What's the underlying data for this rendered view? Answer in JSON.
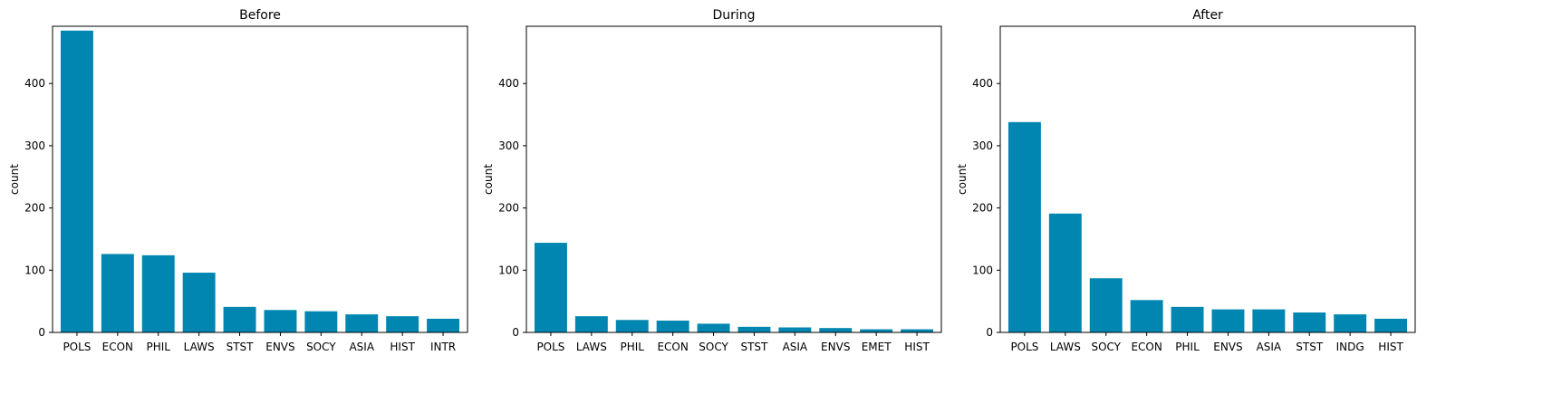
{
  "chart_data": [
    {
      "type": "bar",
      "title": "Before",
      "ylabel": "count",
      "categories": [
        "POLS",
        "ECON",
        "PHIL",
        "LAWS",
        "STST",
        "ENVS",
        "SOCY",
        "ASIA",
        "HIST",
        "INTR"
      ],
      "values": [
        485,
        126,
        124,
        96,
        41,
        36,
        34,
        29,
        26,
        22
      ],
      "ylim": [
        0,
        492
      ],
      "yticks": [
        0,
        100,
        200,
        300,
        400
      ],
      "color": "#0086b0"
    },
    {
      "type": "bar",
      "title": "During",
      "ylabel": "count",
      "categories": [
        "POLS",
        "LAWS",
        "PHIL",
        "ECON",
        "SOCY",
        "STST",
        "ASIA",
        "ENVS",
        "EMET",
        "HIST"
      ],
      "values": [
        144,
        26,
        20,
        19,
        14,
        9,
        8,
        7,
        5,
        5
      ],
      "ylim": [
        0,
        492
      ],
      "yticks": [
        0,
        100,
        200,
        300,
        400
      ],
      "color": "#0086b0"
    },
    {
      "type": "bar",
      "title": "After",
      "ylabel": "count",
      "categories": [
        "POLS",
        "LAWS",
        "SOCY",
        "ECON",
        "PHIL",
        "ENVS",
        "ASIA",
        "STST",
        "INDG",
        "HIST"
      ],
      "values": [
        338,
        191,
        87,
        52,
        41,
        37,
        37,
        32,
        29,
        22
      ],
      "ylim": [
        0,
        492
      ],
      "yticks": [
        0,
        100,
        200,
        300,
        400
      ],
      "color": "#0086b0"
    }
  ]
}
